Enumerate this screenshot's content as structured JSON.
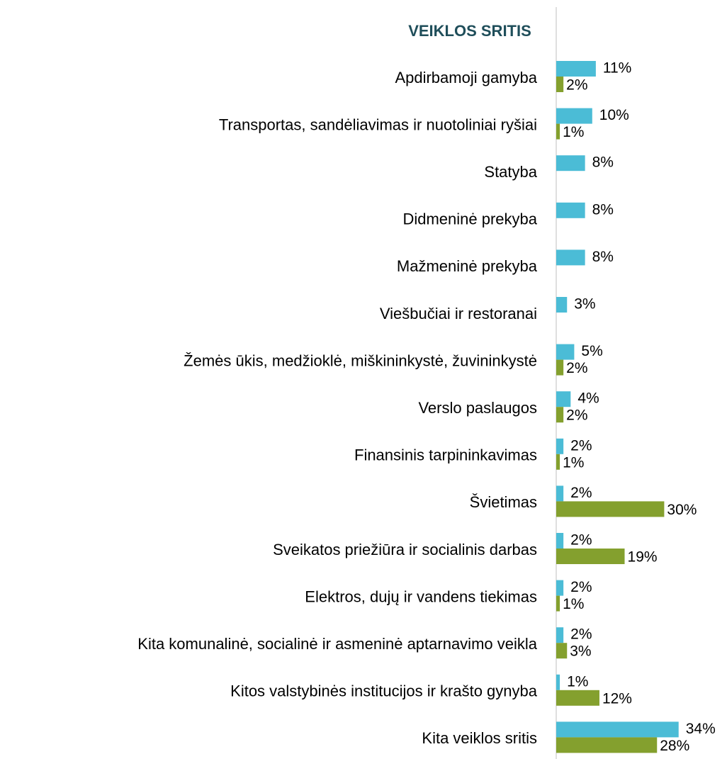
{
  "chart_data": {
    "type": "hbar",
    "title": "VEIKLOS SRITIS",
    "categories": [
      "Apdirbamoji gamyba",
      "Transportas, sandėliavimas ir nuotoliniai ryšiai",
      "Statyba",
      "Didmeninė prekyba",
      "Mažmeninė prekyba",
      "Viešbučiai ir restoranai",
      "Žemės ūkis, medžioklė, miškininkystė, žuvininkystė",
      "Verslo paslaugos",
      "Finansinis tarpininkavimas",
      "Švietimas",
      "Sveikatos priežiūra ir socialinis darbas",
      "Elektros, dujų ir vandens tiekimas",
      "Kita komunalinė, socialinė ir asmeninė aptarnavimo veikla",
      "Kitos valstybinės institucijos ir krašto gynyba",
      "Kita veiklos sritis"
    ],
    "series": [
      {
        "color": "#4bbcd6",
        "values": [
          11,
          10,
          8,
          8,
          8,
          3,
          5,
          4,
          2,
          2,
          2,
          2,
          2,
          1,
          34
        ],
        "value_labels": [
          "11%",
          "10%",
          "8%",
          "8%",
          "8%",
          "3%",
          "5%",
          "4%",
          "2%",
          "2%",
          "2%",
          "2%",
          "2%",
          "1%",
          "34%"
        ]
      },
      {
        "color": "#84a02e",
        "values": [
          2,
          1,
          null,
          null,
          null,
          null,
          2,
          2,
          1,
          30,
          19,
          1,
          3,
          12,
          28
        ],
        "value_labels": [
          "2%",
          "1%",
          null,
          null,
          null,
          null,
          "2%",
          "2%",
          "1%",
          "30%",
          "19%",
          "1%",
          "3%",
          "12%",
          "28%"
        ]
      }
    ]
  }
}
